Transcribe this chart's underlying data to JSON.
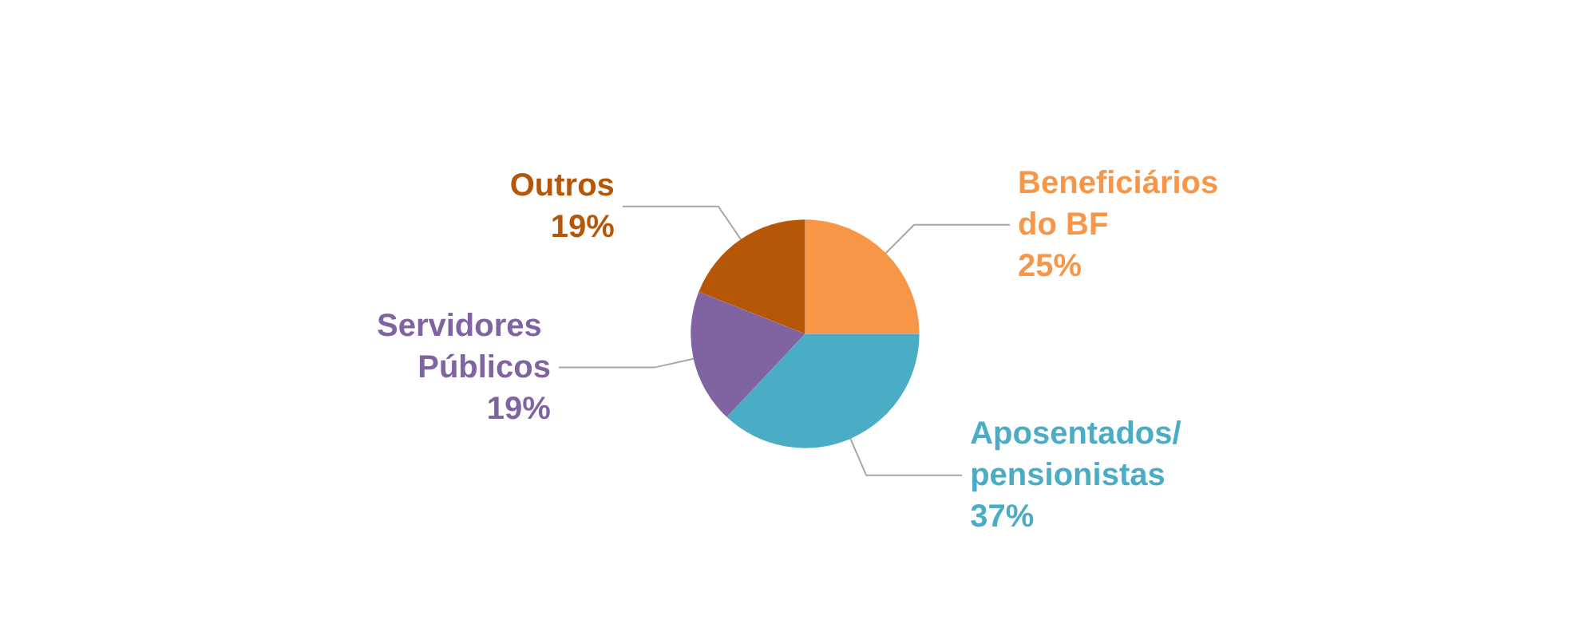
{
  "chart_data": {
    "type": "pie",
    "categories": [
      "Beneficiários do BF",
      "Aposentados/pensionistas",
      "Servidores Públicos",
      "Outros"
    ],
    "values": [
      25,
      37,
      19,
      19
    ],
    "value_labels": [
      "25%",
      "37%",
      "19%",
      "19%"
    ],
    "colors": [
      "#f79646",
      "#4bacc6",
      "#8064a2",
      "#b65708"
    ],
    "legend": false
  }
}
